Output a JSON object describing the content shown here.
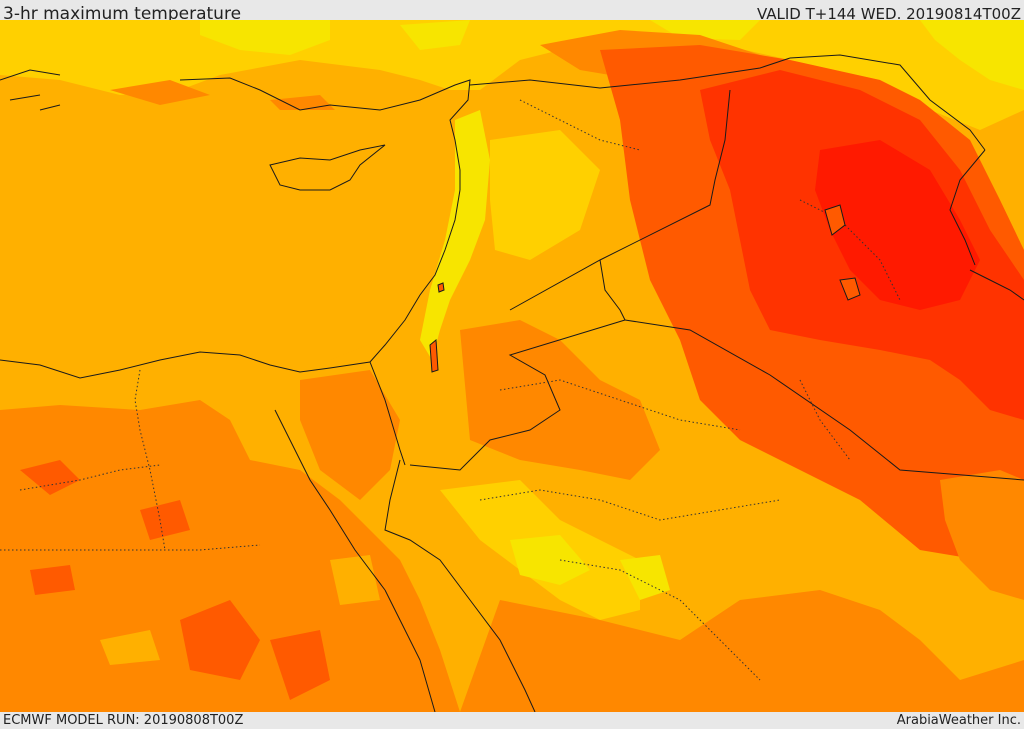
{
  "header": {
    "title": "3-hr maximum temperature",
    "valid": "VALID T+144 WED. 20190814T00Z"
  },
  "footer": {
    "model_run": "ECMWF MODEL RUN: 20190808T00Z",
    "credit": "ArabiaWeather Inc."
  },
  "colors": {
    "background": "#e8e8e8",
    "yellow": "#f7e500",
    "light_orange": "#ffb000",
    "orange": "#ff8800",
    "dark_orange": "#ff5a00",
    "red": "#ff3300",
    "deep_red": "#ff1a00"
  }
}
